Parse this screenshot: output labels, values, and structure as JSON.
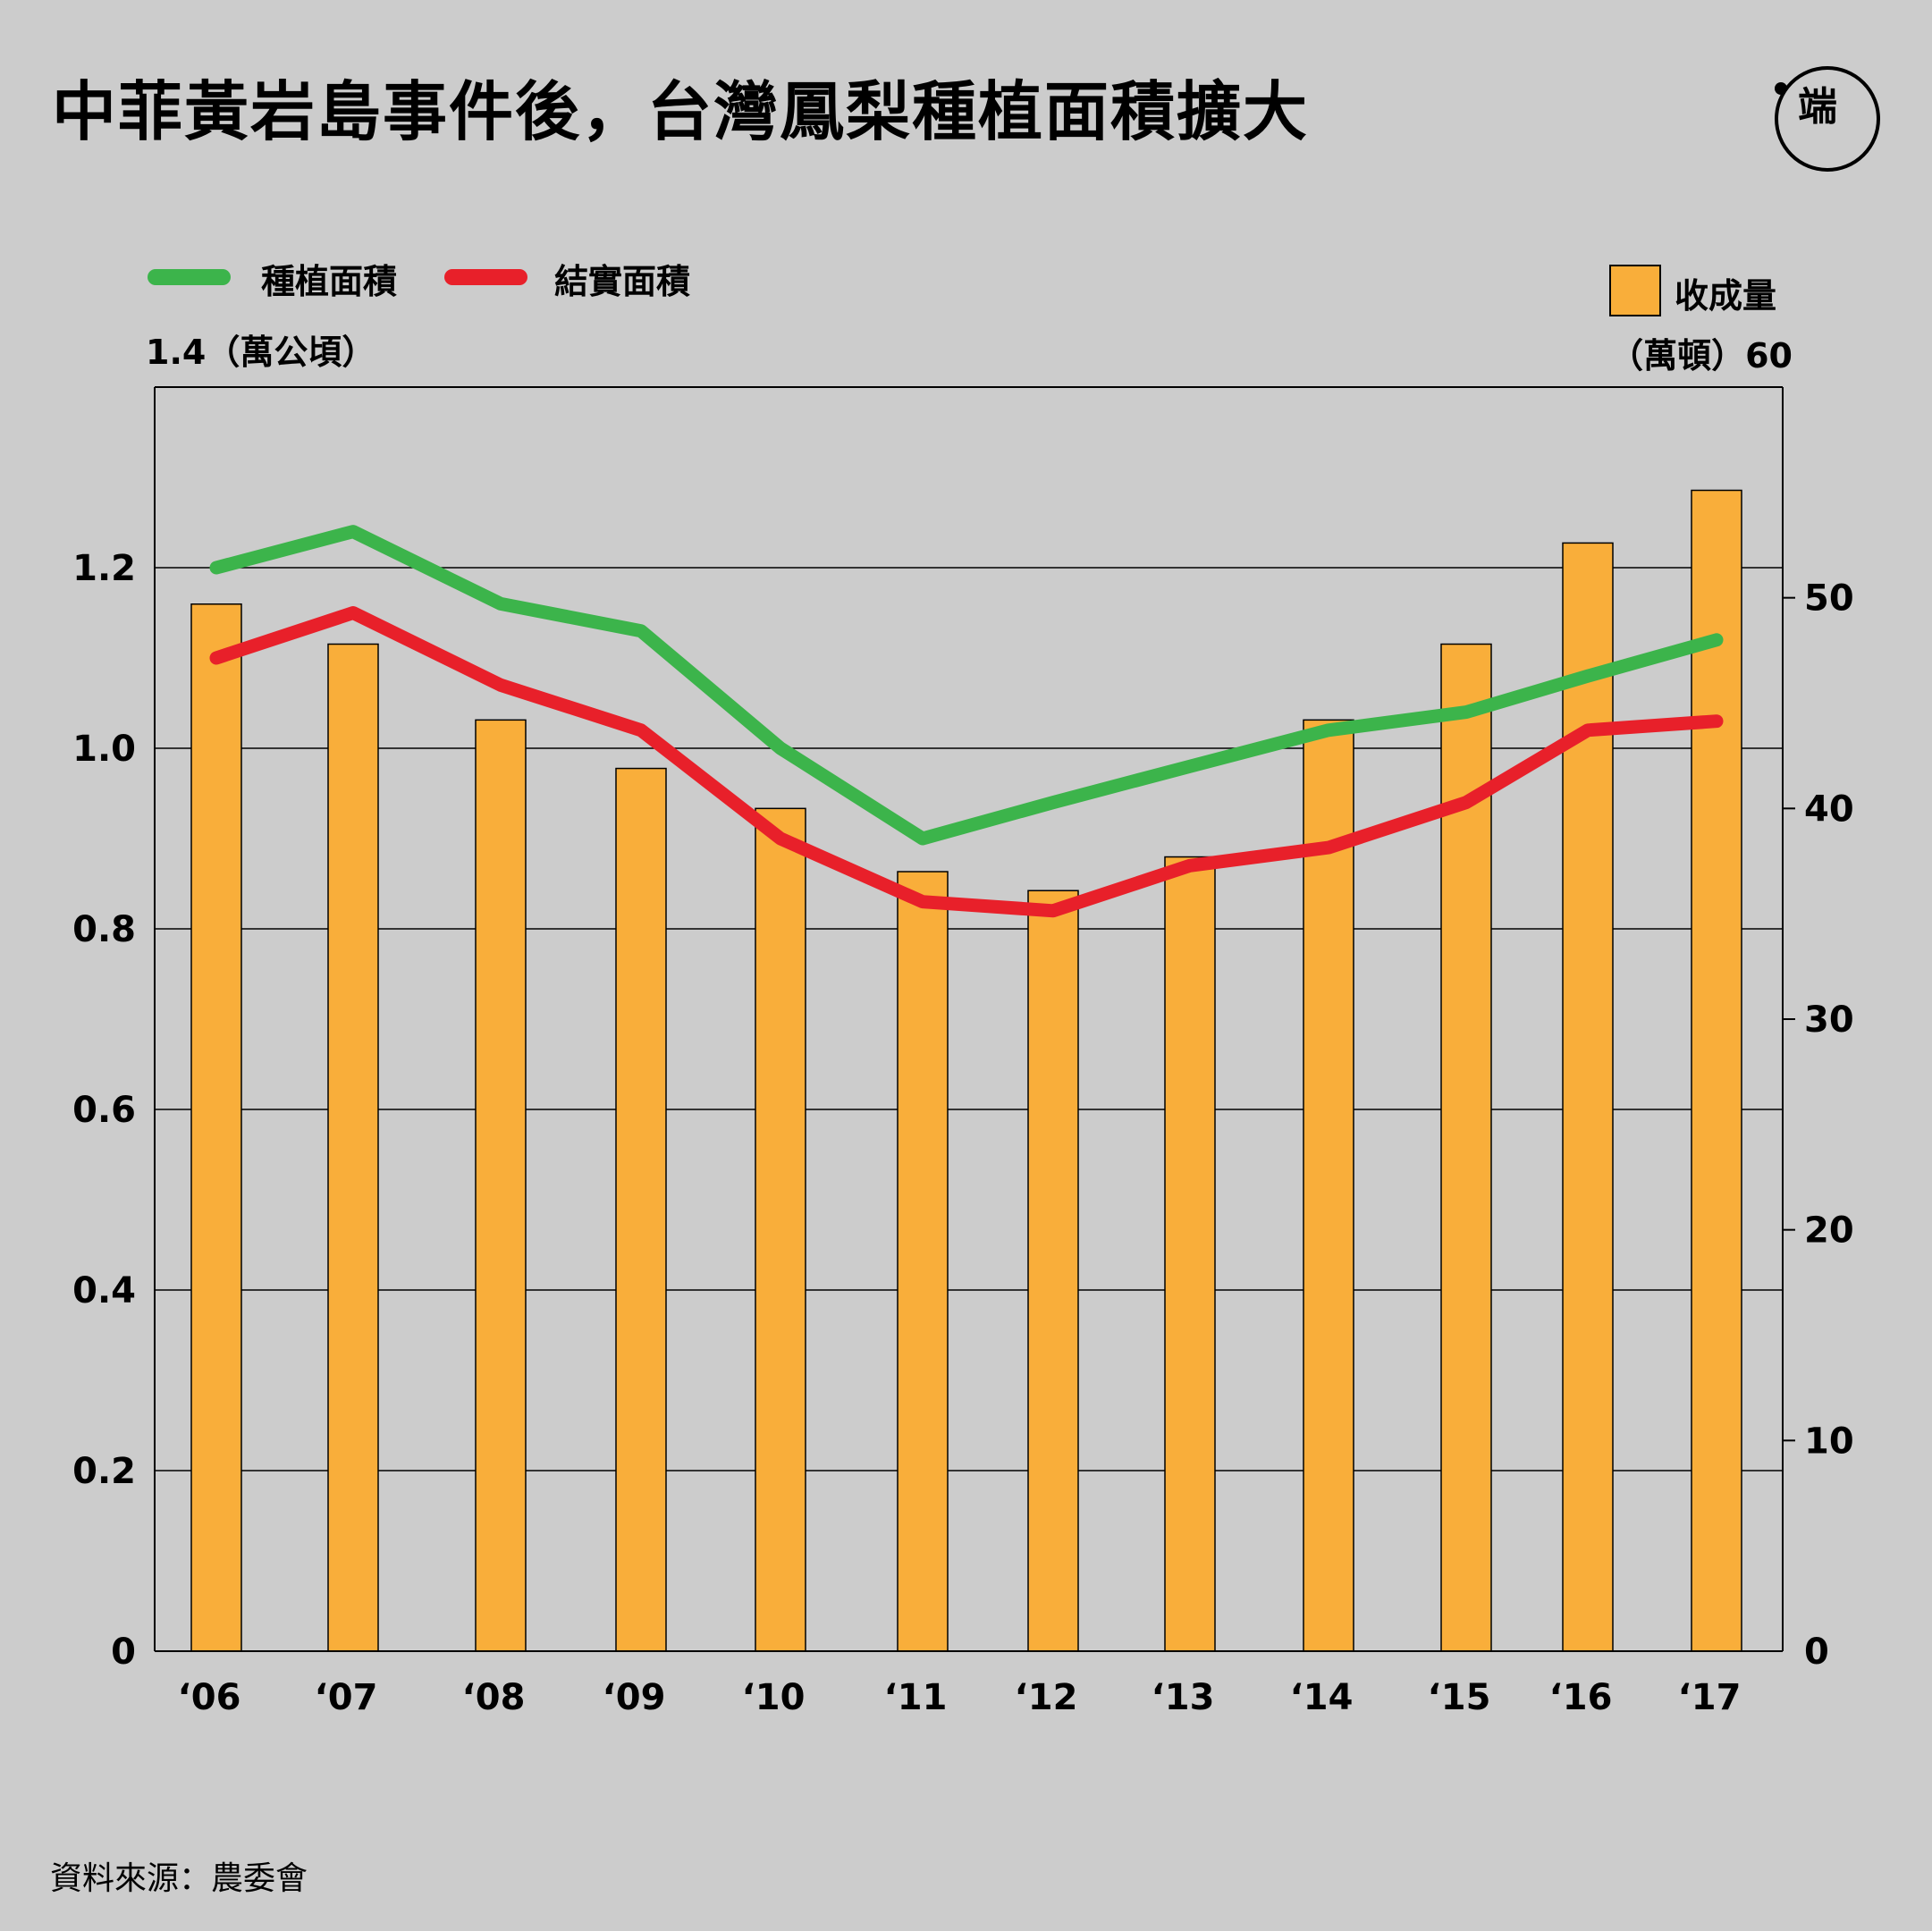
{
  "title": "中菲黃岩島事件後，台灣鳳梨種植面積擴大",
  "logo_text": "端",
  "source": "資料來源：農委會",
  "legend": {
    "planted_area": "種植面積",
    "fruiting_area": "結實面積",
    "harvest": "收成量"
  },
  "left_unit": "1.4（萬公頃）",
  "right_unit": "（萬頓）60",
  "colors": {
    "planted_area": "#3cb44b",
    "fruiting_area": "#e8202a",
    "harvest": "#f9ae3a",
    "background": "#cccccc"
  },
  "chart_data": {
    "type": "bar+line",
    "categories": [
      "‘06",
      "‘07",
      "‘08",
      "‘09",
      "‘10",
      "‘11",
      "‘12",
      "‘13",
      "‘14",
      "‘15",
      "‘16",
      "‘17"
    ],
    "left_axis": {
      "unit": "萬公頃",
      "ylim": [
        0,
        1.4
      ],
      "ticks": [
        0,
        0.2,
        0.4,
        0.6,
        0.8,
        1.0,
        1.2
      ],
      "tick_labels": [
        "0",
        "0.2",
        "0.4",
        "0.6",
        "0.8",
        "1.0",
        "1.2"
      ]
    },
    "right_axis": {
      "unit": "萬頓",
      "ylim": [
        0,
        60
      ],
      "ticks": [
        0,
        10,
        20,
        30,
        40,
        50
      ],
      "tick_labels": [
        "0",
        "10",
        "20",
        "30",
        "40",
        "50"
      ]
    },
    "series": [
      {
        "name": "收成量",
        "type": "bar",
        "axis": "right",
        "values": [
          49.7,
          47.8,
          44.2,
          41.9,
          40.0,
          37.0,
          36.1,
          37.7,
          44.2,
          47.8,
          52.6,
          55.1
        ]
      },
      {
        "name": "種植面積",
        "type": "line",
        "axis": "left",
        "values": [
          1.2,
          1.24,
          1.16,
          1.13,
          1.0,
          0.9,
          0.94,
          0.98,
          1.02,
          1.04,
          1.08,
          1.12
        ]
      },
      {
        "name": "結實面積",
        "type": "line",
        "axis": "left",
        "values": [
          1.1,
          1.15,
          1.07,
          1.02,
          0.9,
          0.83,
          0.82,
          0.87,
          0.89,
          0.94,
          1.02,
          1.03
        ]
      }
    ],
    "grid": true,
    "legend_position": "top-left"
  }
}
